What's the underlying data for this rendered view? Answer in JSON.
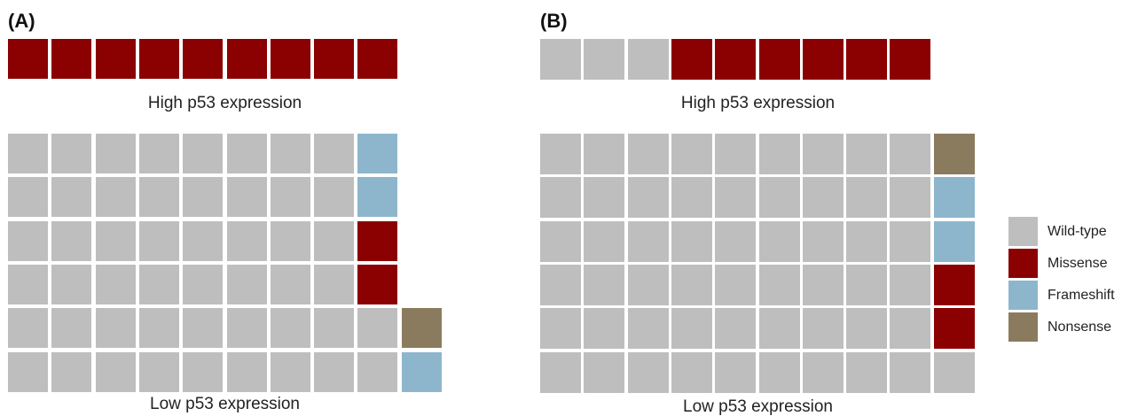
{
  "colors": {
    "Wild-type": "#bebebe",
    "Missense": "#8b0000",
    "Frameshift": "#8db6cd",
    "Nonsense": "#8b7b5e"
  },
  "chart_data": [
    {
      "type": "waffle",
      "panel": "(A)",
      "groups": [
        {
          "label": "High p53 expression",
          "rows": [
            [
              "Missense",
              "Missense",
              "Missense",
              "Missense",
              "Missense",
              "Missense",
              "Missense",
              "Missense",
              "Missense"
            ]
          ]
        },
        {
          "label": "Low p53 expression",
          "rows": [
            [
              "Wild-type",
              "Wild-type",
              "Wild-type",
              "Wild-type",
              "Wild-type",
              "Wild-type",
              "Wild-type",
              "Wild-type",
              "Frameshift"
            ],
            [
              "Wild-type",
              "Wild-type",
              "Wild-type",
              "Wild-type",
              "Wild-type",
              "Wild-type",
              "Wild-type",
              "Wild-type",
              "Frameshift"
            ],
            [
              "Wild-type",
              "Wild-type",
              "Wild-type",
              "Wild-type",
              "Wild-type",
              "Wild-type",
              "Wild-type",
              "Wild-type",
              "Missense"
            ],
            [
              "Wild-type",
              "Wild-type",
              "Wild-type",
              "Wild-type",
              "Wild-type",
              "Wild-type",
              "Wild-type",
              "Wild-type",
              "Missense"
            ],
            [
              "Wild-type",
              "Wild-type",
              "Wild-type",
              "Wild-type",
              "Wild-type",
              "Wild-type",
              "Wild-type",
              "Wild-type",
              "Wild-type",
              "Nonsense"
            ],
            [
              "Wild-type",
              "Wild-type",
              "Wild-type",
              "Wild-type",
              "Wild-type",
              "Wild-type",
              "Wild-type",
              "Wild-type",
              "Wild-type",
              "Frameshift"
            ]
          ]
        }
      ]
    },
    {
      "type": "waffle",
      "panel": "(B)",
      "groups": [
        {
          "label": "High p53 expression",
          "rows": [
            [
              "Wild-type",
              "Wild-type",
              "Wild-type",
              "Missense",
              "Missense",
              "Missense",
              "Missense",
              "Missense",
              "Missense"
            ]
          ]
        },
        {
          "label": "Low p53 expression",
          "rows": [
            [
              "Wild-type",
              "Wild-type",
              "Wild-type",
              "Wild-type",
              "Wild-type",
              "Wild-type",
              "Wild-type",
              "Wild-type",
              "Wild-type",
              "Nonsense"
            ],
            [
              "Wild-type",
              "Wild-type",
              "Wild-type",
              "Wild-type",
              "Wild-type",
              "Wild-type",
              "Wild-type",
              "Wild-type",
              "Wild-type",
              "Frameshift"
            ],
            [
              "Wild-type",
              "Wild-type",
              "Wild-type",
              "Wild-type",
              "Wild-type",
              "Wild-type",
              "Wild-type",
              "Wild-type",
              "Wild-type",
              "Frameshift"
            ],
            [
              "Wild-type",
              "Wild-type",
              "Wild-type",
              "Wild-type",
              "Wild-type",
              "Wild-type",
              "Wild-type",
              "Wild-type",
              "Wild-type",
              "Missense"
            ],
            [
              "Wild-type",
              "Wild-type",
              "Wild-type",
              "Wild-type",
              "Wild-type",
              "Wild-type",
              "Wild-type",
              "Wild-type",
              "Wild-type",
              "Missense"
            ],
            [
              "Wild-type",
              "Wild-type",
              "Wild-type",
              "Wild-type",
              "Wild-type",
              "Wild-type",
              "Wild-type",
              "Wild-type",
              "Wild-type",
              "Wild-type"
            ]
          ]
        }
      ]
    }
  ],
  "legend": [
    "Wild-type",
    "Missense",
    "Frameshift",
    "Nonsense"
  ]
}
